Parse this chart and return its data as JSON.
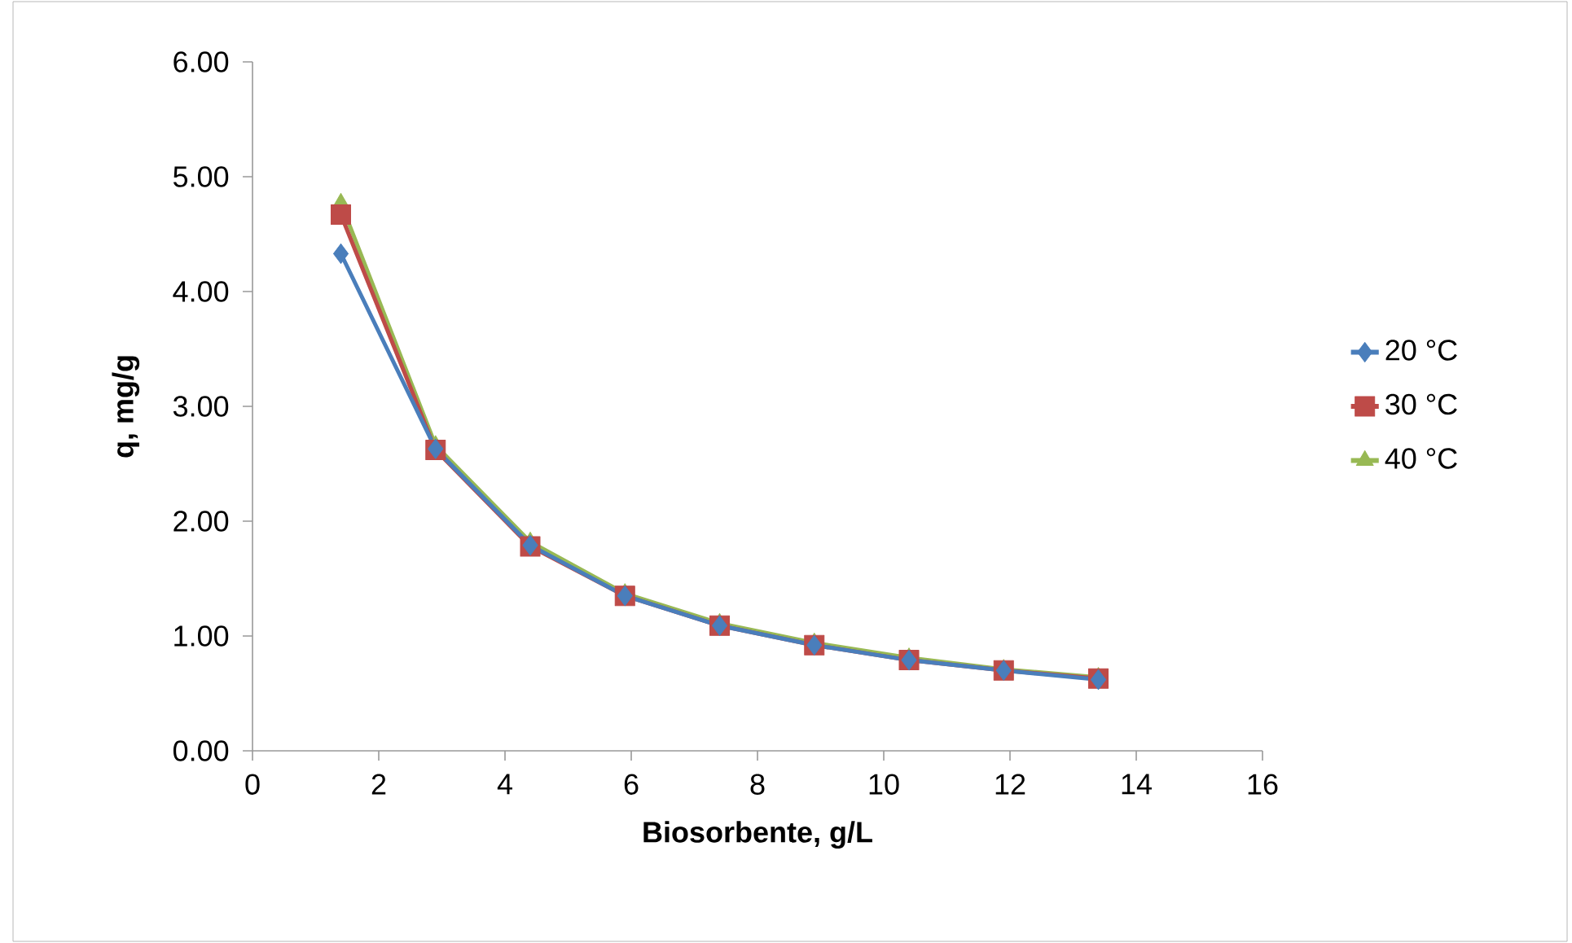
{
  "chart_data": {
    "type": "line",
    "xlabel": "Biosorbente, g/L",
    "ylabel": "q, mg/g",
    "x": [
      1.4,
      2.9,
      4.4,
      5.9,
      7.4,
      8.9,
      10.4,
      11.9,
      13.4
    ],
    "series": [
      {
        "name": "20 °C",
        "color": "#4a7ebb",
        "marker": "diamond",
        "values": [
          4.33,
          2.63,
          1.79,
          1.35,
          1.09,
          0.92,
          0.79,
          0.7,
          0.62
        ]
      },
      {
        "name": "30 °C",
        "color": "#be4b48",
        "marker": "square",
        "values": [
          4.67,
          2.62,
          1.78,
          1.35,
          1.09,
          0.92,
          0.79,
          0.7,
          0.63
        ]
      },
      {
        "name": "40 °C",
        "color": "#98b954",
        "marker": "triangle",
        "values": [
          4.77,
          2.66,
          1.82,
          1.37,
          1.11,
          0.94,
          0.81,
          0.71,
          0.64
        ]
      }
    ],
    "xlim": [
      0,
      16
    ],
    "xticks": [
      0,
      2,
      4,
      6,
      8,
      10,
      12,
      14,
      16
    ],
    "ylim": [
      0,
      6
    ],
    "yticks": [
      {
        "value": 0,
        "label": "0.00"
      },
      {
        "value": 1,
        "label": "1.00"
      },
      {
        "value": 2,
        "label": "2.00"
      },
      {
        "value": 3,
        "label": "3.00"
      },
      {
        "value": 4,
        "label": "4.00"
      },
      {
        "value": 5,
        "label": "5.00"
      },
      {
        "value": 6,
        "label": "6.00"
      }
    ],
    "grid": false,
    "legend": "right",
    "line_style": "solid"
  }
}
